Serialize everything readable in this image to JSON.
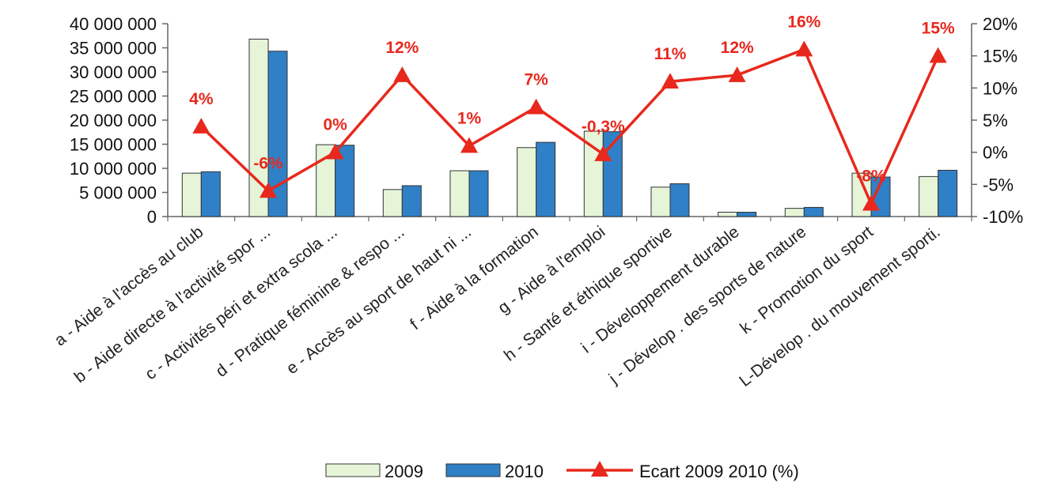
{
  "chart_data": {
    "type": "bar",
    "categories": [
      "a - Aide à l'accès au club",
      "b - Aide directe à l'activité spor ...",
      "c - Activités péri et extra scola ...",
      "d - Pratique féminine & respo ...",
      "e - Accès au sport de haut ni ...",
      "f - Aide à la formation",
      "g - Aide à l'emploi",
      "h - Santé et éthique sportive",
      "i - Développement durable",
      "j - Dévelop . des sports de nature",
      "k - Promotion du sport",
      "L-Dévelop . du mouvement sporti."
    ],
    "series": [
      {
        "name": "2009",
        "type": "bar",
        "axis": "left",
        "color": "#e6f5d8",
        "values": [
          9000000,
          36800000,
          14900000,
          5600000,
          9500000,
          14300000,
          17700000,
          6100000,
          900000,
          1700000,
          9000000,
          8300000
        ]
      },
      {
        "name": "2010",
        "type": "bar",
        "axis": "left",
        "color": "#2f80c6",
        "values": [
          9300000,
          34300000,
          14800000,
          6400000,
          9500000,
          15400000,
          17600000,
          6800000,
          900000,
          1900000,
          8200000,
          9600000
        ]
      },
      {
        "name": "Ecart 2009 2010 (%)",
        "type": "line",
        "axis": "right",
        "color": "#e8281d",
        "values": [
          4,
          -6,
          0,
          12,
          1,
          7,
          -0.3,
          11,
          12,
          16,
          -8,
          15
        ],
        "data_labels": [
          "4%",
          "-6%",
          "0%",
          "12%",
          "1%",
          "7%",
          "-0,3%",
          "11%",
          "12%",
          "16%",
          "-8%",
          "15%"
        ]
      }
    ],
    "y_left": {
      "ylim": [
        0,
        40000000
      ],
      "ticks": [
        0,
        5000000,
        10000000,
        15000000,
        20000000,
        25000000,
        30000000,
        35000000,
        40000000
      ],
      "tick_labels": [
        "0",
        "5 000 000",
        "10 000 000",
        "15 000 000",
        "20 000 000",
        "25 000 000",
        "30 000 000",
        "35 000 000",
        "40 000 000"
      ]
    },
    "y_right": {
      "ylim": [
        -10,
        20
      ],
      "ticks": [
        -10,
        -5,
        0,
        5,
        10,
        15,
        20
      ],
      "tick_labels": [
        "-10%",
        "-5%",
        "0%",
        "5%",
        "10%",
        "15%",
        "20%"
      ]
    },
    "grid": false,
    "legend_position": "bottom"
  }
}
